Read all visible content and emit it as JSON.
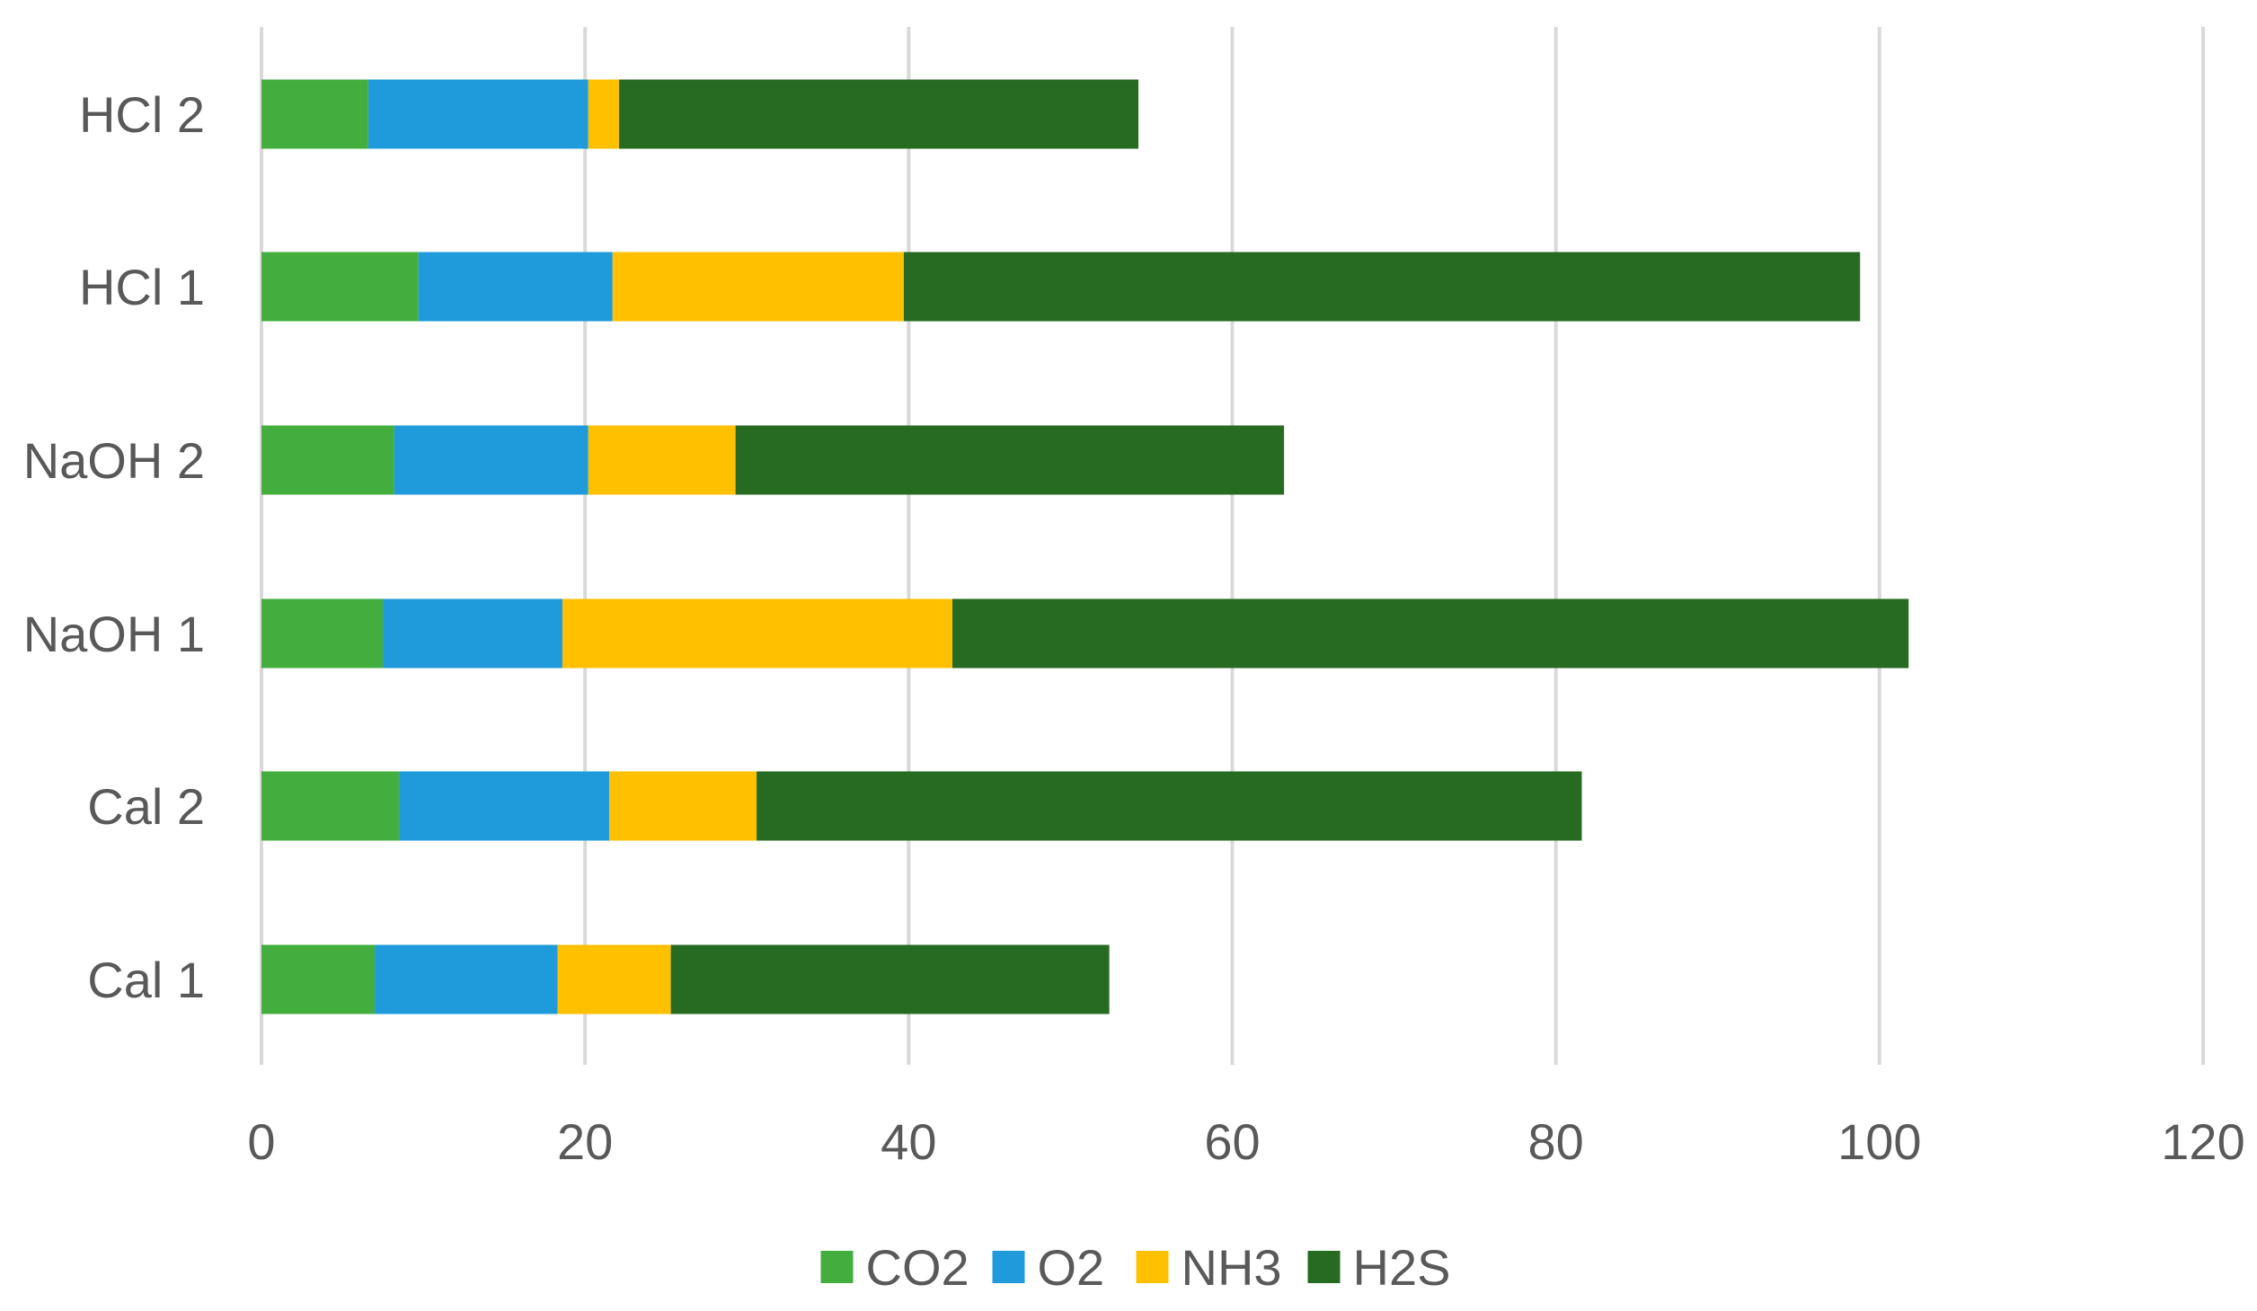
{
  "chart_data": {
    "type": "bar",
    "orientation": "horizontal",
    "stacked": true,
    "title": "",
    "xlabel": "",
    "ylabel": "",
    "categories": [
      "Cal 1",
      "Cal 2",
      "NaOH 1",
      "NaOH 2",
      "HCl 1",
      "HCl 2"
    ],
    "series": [
      {
        "name": "CO2",
        "color": "#43ae3e",
        "values": [
          7.0,
          8.5,
          7.5,
          8.2,
          9.7,
          6.6
        ]
      },
      {
        "name": "O2",
        "color": "#1f9bdb",
        "values": [
          11.3,
          13.0,
          11.1,
          12.0,
          12.0,
          13.6
        ]
      },
      {
        "name": "NH3",
        "color": "#ffc000",
        "values": [
          7.0,
          9.1,
          24.1,
          9.1,
          18.0,
          1.9
        ]
      },
      {
        "name": "H2S",
        "color": "#276b23",
        "values": [
          27.1,
          51.0,
          59.1,
          33.9,
          59.1,
          32.1
        ]
      }
    ],
    "xlim": [
      0,
      120
    ],
    "xticks": [
      "0",
      "20",
      "40",
      "60",
      "80",
      "100",
      "120"
    ],
    "grid": true,
    "legend_position": "bottom"
  }
}
